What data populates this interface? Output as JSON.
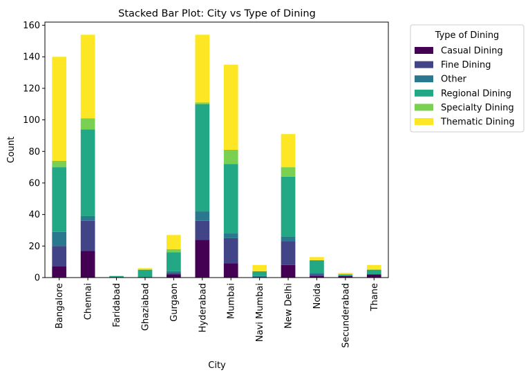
{
  "chart_data": {
    "type": "bar",
    "stacked": true,
    "title": "Stacked Bar Plot: City vs Type of Dining",
    "xlabel": "City",
    "ylabel": "Count",
    "ylim": [
      0,
      162
    ],
    "yticks": [
      0,
      20,
      40,
      60,
      80,
      100,
      120,
      140,
      160
    ],
    "grid": false,
    "legend_title": "Type of Dining",
    "legend_position": "outside-top-right",
    "categories": [
      "Bangalore",
      "Chennai",
      "Faridabad",
      "Ghaziabad",
      "Gurgaon",
      "Hyderabad",
      "Mumbai",
      "Navi Mumbai",
      "New Delhi",
      "Noida",
      "Secunderabad",
      "Thane"
    ],
    "series": [
      {
        "name": "Casual Dining",
        "color": "#440154",
        "values": [
          7,
          17,
          0,
          0,
          2,
          24,
          9,
          0,
          8,
          1,
          1,
          2
        ]
      },
      {
        "name": "Fine Dining",
        "color": "#414487",
        "values": [
          13,
          19,
          0,
          0,
          1,
          12,
          16,
          0,
          15,
          1,
          0,
          0
        ]
      },
      {
        "name": "Other",
        "color": "#2a788e",
        "values": [
          9,
          3,
          0,
          0,
          1,
          6,
          3,
          1,
          3,
          1,
          0,
          0
        ]
      },
      {
        "name": "Regional Dining",
        "color": "#22a884",
        "values": [
          41,
          55,
          1,
          5,
          12,
          68,
          44,
          3,
          38,
          8,
          1,
          3
        ]
      },
      {
        "name": "Specialty Dining",
        "color": "#7ad151",
        "values": [
          4,
          7,
          0,
          0,
          2,
          1,
          9,
          0,
          6,
          0,
          0,
          0
        ]
      },
      {
        "name": "Thematic Dining",
        "color": "#fde725",
        "values": [
          66,
          53,
          0,
          1,
          9,
          43,
          54,
          4,
          21,
          2,
          1,
          3
        ]
      }
    ]
  }
}
